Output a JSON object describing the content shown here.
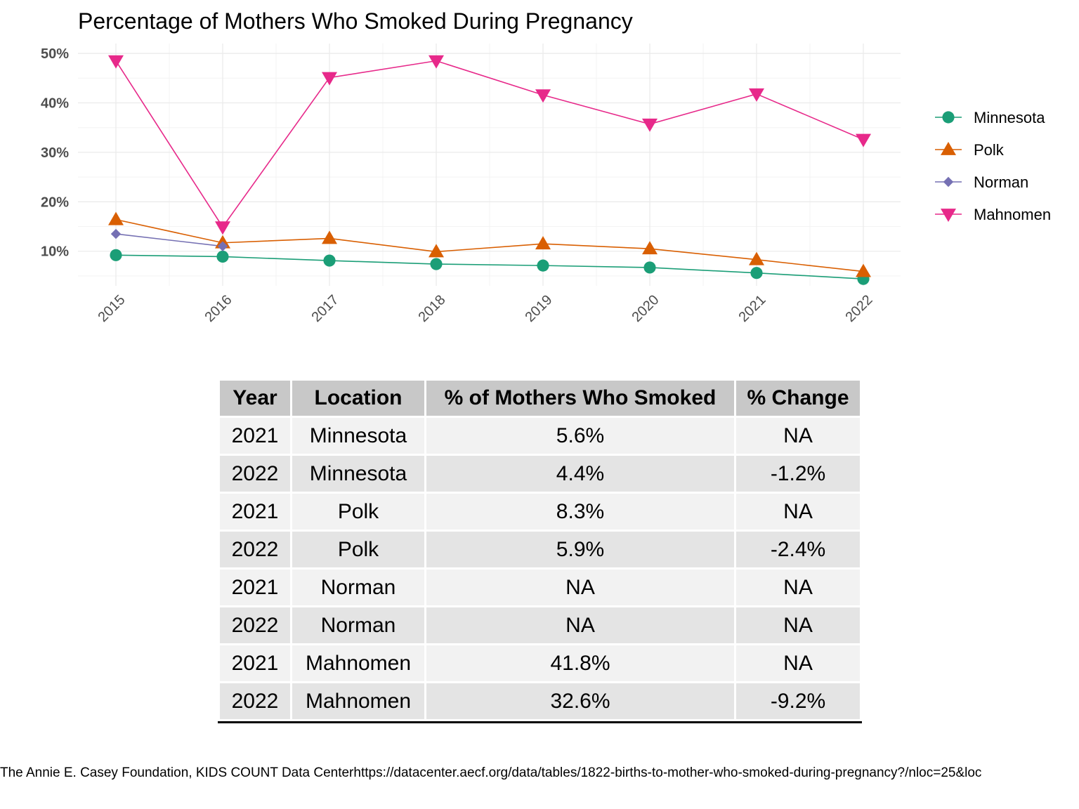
{
  "chart_data": {
    "type": "line",
    "title": "Percentage of Mothers Who Smoked During Pregnancy",
    "xlabel": "",
    "ylabel": "",
    "categories": [
      "2015",
      "2016",
      "2017",
      "2018",
      "2019",
      "2020",
      "2021",
      "2022"
    ],
    "y_ticks": [
      "10%",
      "20%",
      "30%",
      "40%",
      "50%"
    ],
    "y_tick_values": [
      10,
      20,
      30,
      40,
      50
    ],
    "ylim": [
      3,
      52
    ],
    "grid": true,
    "legend_position": "right",
    "series": [
      {
        "name": "Minnesota",
        "color": "#1b9e77",
        "marker": "circle",
        "values": [
          9.2,
          8.9,
          8.1,
          7.4,
          7.1,
          6.7,
          5.6,
          4.4
        ]
      },
      {
        "name": "Polk",
        "color": "#d95f02",
        "marker": "triangle-up",
        "values": [
          16.4,
          11.7,
          12.6,
          9.9,
          11.5,
          10.5,
          8.3,
          5.9
        ]
      },
      {
        "name": "Norman",
        "color": "#7570b3",
        "marker": "diamond",
        "values": [
          13.5,
          11.0,
          null,
          null,
          null,
          null,
          null,
          null
        ]
      },
      {
        "name": "Mahnomen",
        "color": "#e7298a",
        "marker": "triangle-down",
        "values": [
          48.5,
          14.9,
          45.1,
          48.5,
          41.6,
          35.7,
          41.8,
          32.6
        ]
      }
    ]
  },
  "table": {
    "headers": [
      "Year",
      "Location",
      "% of Mothers Who Smoked",
      "% Change"
    ],
    "rows": [
      [
        "2021",
        "Minnesota",
        "5.6%",
        "NA"
      ],
      [
        "2022",
        "Minnesota",
        "4.4%",
        "-1.2%"
      ],
      [
        "2021",
        "Polk",
        "8.3%",
        "NA"
      ],
      [
        "2022",
        "Polk",
        "5.9%",
        "-2.4%"
      ],
      [
        "2021",
        "Norman",
        "NA",
        "NA"
      ],
      [
        "2022",
        "Norman",
        "NA",
        "NA"
      ],
      [
        "2021",
        "Mahnomen",
        "41.8%",
        "NA"
      ],
      [
        "2022",
        "Mahnomen",
        "32.6%",
        "-9.2%"
      ]
    ]
  },
  "caption": "The Annie E. Casey Foundation, KIDS COUNT Data Centerhttps://datacenter.aecf.org/data/tables/1822-births-to-mother-who-smoked-during-pregnancy?/nloc=25&loc"
}
